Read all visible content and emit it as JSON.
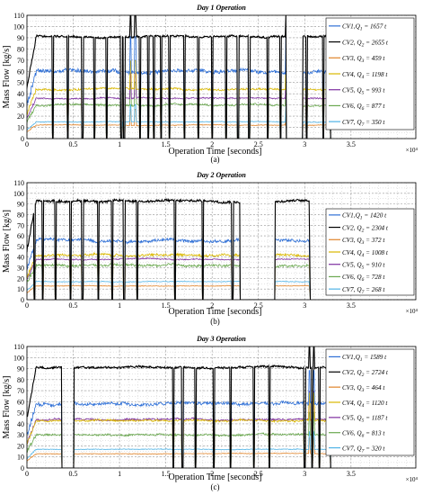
{
  "figure": {
    "common": {
      "xlabel": "Operation Time [seconds]",
      "ylabel": "Mass Flow [kg/s]",
      "x_exponent": "×10⁴",
      "xlim": [
        0,
        4.2
      ],
      "ylim": [
        0,
        110
      ],
      "xticks": [
        "0",
        "0.5",
        "1",
        "1.5",
        "2",
        "2.5",
        "3",
        "3.5"
      ],
      "yticks": [
        "0",
        "10",
        "20",
        "30",
        "40",
        "50",
        "60",
        "70",
        "80",
        "90",
        "100",
        "110"
      ]
    },
    "series_colors": [
      "#2e6fd6",
      "#000000",
      "#e0842a",
      "#d9b700",
      "#7e2fa0",
      "#6aa84f",
      "#4fb3e6"
    ],
    "legend_labels": [
      {
        "pre": "CV",
        "num": "",
        "sub": "",
        "post": "",
        "sep": ""
      }
    ]
  },
  "chart_data": [
    {
      "type": "line",
      "title": "Day 1 Operation",
      "caption": "(a)",
      "xlabel": "Operation Time [seconds]",
      "ylabel": "Mass Flow [kg/s]",
      "xlim": [
        0,
        4.2
      ],
      "ylim": [
        0,
        110
      ],
      "grid": true,
      "legend_position": "top-right",
      "series": [
        {
          "name": "CV1,Q1 = 1657 t",
          "cv": "1",
          "q": "1",
          "amount": "1657 t",
          "level": 60,
          "variation": 6
        },
        {
          "name": "CV2, Q2 = 2655 t",
          "cv": "2",
          "q": "2",
          "amount": "2655 t",
          "level": 91,
          "variation": 3
        },
        {
          "name": "CV3, Q3 = 459 t",
          "cv": "3",
          "q": "3",
          "amount": "459 t",
          "level": 12,
          "variation": 1
        },
        {
          "name": "CV4, Q4 = 1198 t",
          "cv": "4",
          "q": "4",
          "amount": "1198 t",
          "level": 44,
          "variation": 3
        },
        {
          "name": "CV5, Q5 = 993 t",
          "cv": "5",
          "q": "5",
          "amount": "993 t",
          "level": 36,
          "variation": 2
        },
        {
          "name": "CV6, Q6 = 877 t",
          "cv": "6",
          "q": "6",
          "amount": "877 t",
          "level": 30,
          "variation": 3
        },
        {
          "name": "CV7, Q7 = 350 t",
          "cv": "7",
          "q": "7",
          "amount": "350 t",
          "level": 15,
          "variation": 1
        }
      ],
      "end_time": 3.27,
      "gaps": [
        [
          2.8,
          2.98
        ]
      ],
      "dips": [
        0.28,
        0.44,
        0.6,
        0.73,
        0.86,
        1.02,
        1.05,
        1.12,
        1.17,
        1.22,
        1.31,
        1.37,
        1.45,
        1.54,
        1.7,
        1.85,
        2.0,
        2.15,
        2.28,
        2.4,
        2.6,
        2.74,
        3.02,
        3.2
      ],
      "spikes": [
        1.12,
        1.17,
        2.8
      ]
    },
    {
      "type": "line",
      "title": "Day 2 Operation",
      "caption": "(b)",
      "xlabel": "Operation Time [seconds]",
      "ylabel": "Mass Flow [kg/s]",
      "xlim": [
        0,
        4.2
      ],
      "ylim": [
        0,
        110
      ],
      "grid": true,
      "legend_position": "center-right",
      "series": [
        {
          "name": "CV1,Q1 = 1420 t",
          "cv": "1",
          "q": "1",
          "amount": "1420 t",
          "level": 56,
          "variation": 5
        },
        {
          "name": "CV2, Q2 = 2304 t",
          "cv": "2",
          "q": "2",
          "amount": "2304 t",
          "level": 93,
          "variation": 4
        },
        {
          "name": "CV3, Q3 = 372 t",
          "cv": "3",
          "q": "3",
          "amount": "372 t",
          "level": 13,
          "variation": 1
        },
        {
          "name": "CV4, Q4 = 1008 t",
          "cv": "4",
          "q": "4",
          "amount": "1008 t",
          "level": 42,
          "variation": 4
        },
        {
          "name": "CV5, Q5 = 910 t",
          "cv": "5",
          "q": "5",
          "amount": "910 t",
          "level": 38,
          "variation": 2
        },
        {
          "name": "CV6, Q6 = 728 t",
          "cv": "6",
          "q": "6",
          "amount": "728 t",
          "level": 32,
          "variation": 4
        },
        {
          "name": "CV7, Q7 = 268 t",
          "cv": "7",
          "q": "7",
          "amount": "268 t",
          "level": 17,
          "variation": 1
        }
      ],
      "end_time": 3.05,
      "gaps": [
        [
          2.3,
          2.68
        ]
      ],
      "dips": [
        0.08,
        0.17,
        0.31,
        0.47,
        0.6,
        0.77,
        0.92,
        1.05,
        1.19,
        1.6,
        1.9,
        2.22
      ],
      "spikes": [
        2.62,
        2.66
      ]
    },
    {
      "type": "line",
      "title": "Day 3 Operation",
      "caption": "(c)",
      "xlabel": "Operation Time [seconds]",
      "ylabel": "Mass Flow [kg/s]",
      "xlim": [
        0,
        4.2
      ],
      "ylim": [
        0,
        110
      ],
      "grid": true,
      "legend_position": "top-right",
      "series": [
        {
          "name": "CV1,Q1 = 1589 t",
          "cv": "1",
          "q": "1",
          "amount": "1589 t",
          "level": 58,
          "variation": 5
        },
        {
          "name": "CV2, Q2 = 2724 t",
          "cv": "2",
          "q": "2",
          "amount": "2724 t",
          "level": 91,
          "variation": 3
        },
        {
          "name": "CV3, Q3 = 464 t",
          "cv": "3",
          "q": "3",
          "amount": "464 t",
          "level": 13,
          "variation": 1
        },
        {
          "name": "CV4, Q4 = 1120 t",
          "cv": "4",
          "q": "4",
          "amount": "1120 t",
          "level": 43,
          "variation": 3
        },
        {
          "name": "CV5, Q5 = 1187 t",
          "cv": "5",
          "q": "5",
          "amount": "1187 t",
          "level": 44,
          "variation": 3
        },
        {
          "name": "CV6, Q6 = 813 t",
          "cv": "6",
          "q": "6",
          "amount": "813 t",
          "level": 30,
          "variation": 3
        },
        {
          "name": "CV7, Q7 = 320 t",
          "cv": "7",
          "q": "7",
          "amount": "320 t",
          "level": 17,
          "variation": 1
        }
      ],
      "end_time": 3.27,
      "gaps": [
        [
          0.38,
          0.5
        ]
      ],
      "dips": [
        0.38,
        0.5,
        1.58,
        1.68,
        1.82,
        2.02,
        2.2,
        2.45,
        2.62,
        3.0,
        3.08,
        3.16
      ],
      "spikes": [
        3.05,
        3.1
      ]
    }
  ]
}
